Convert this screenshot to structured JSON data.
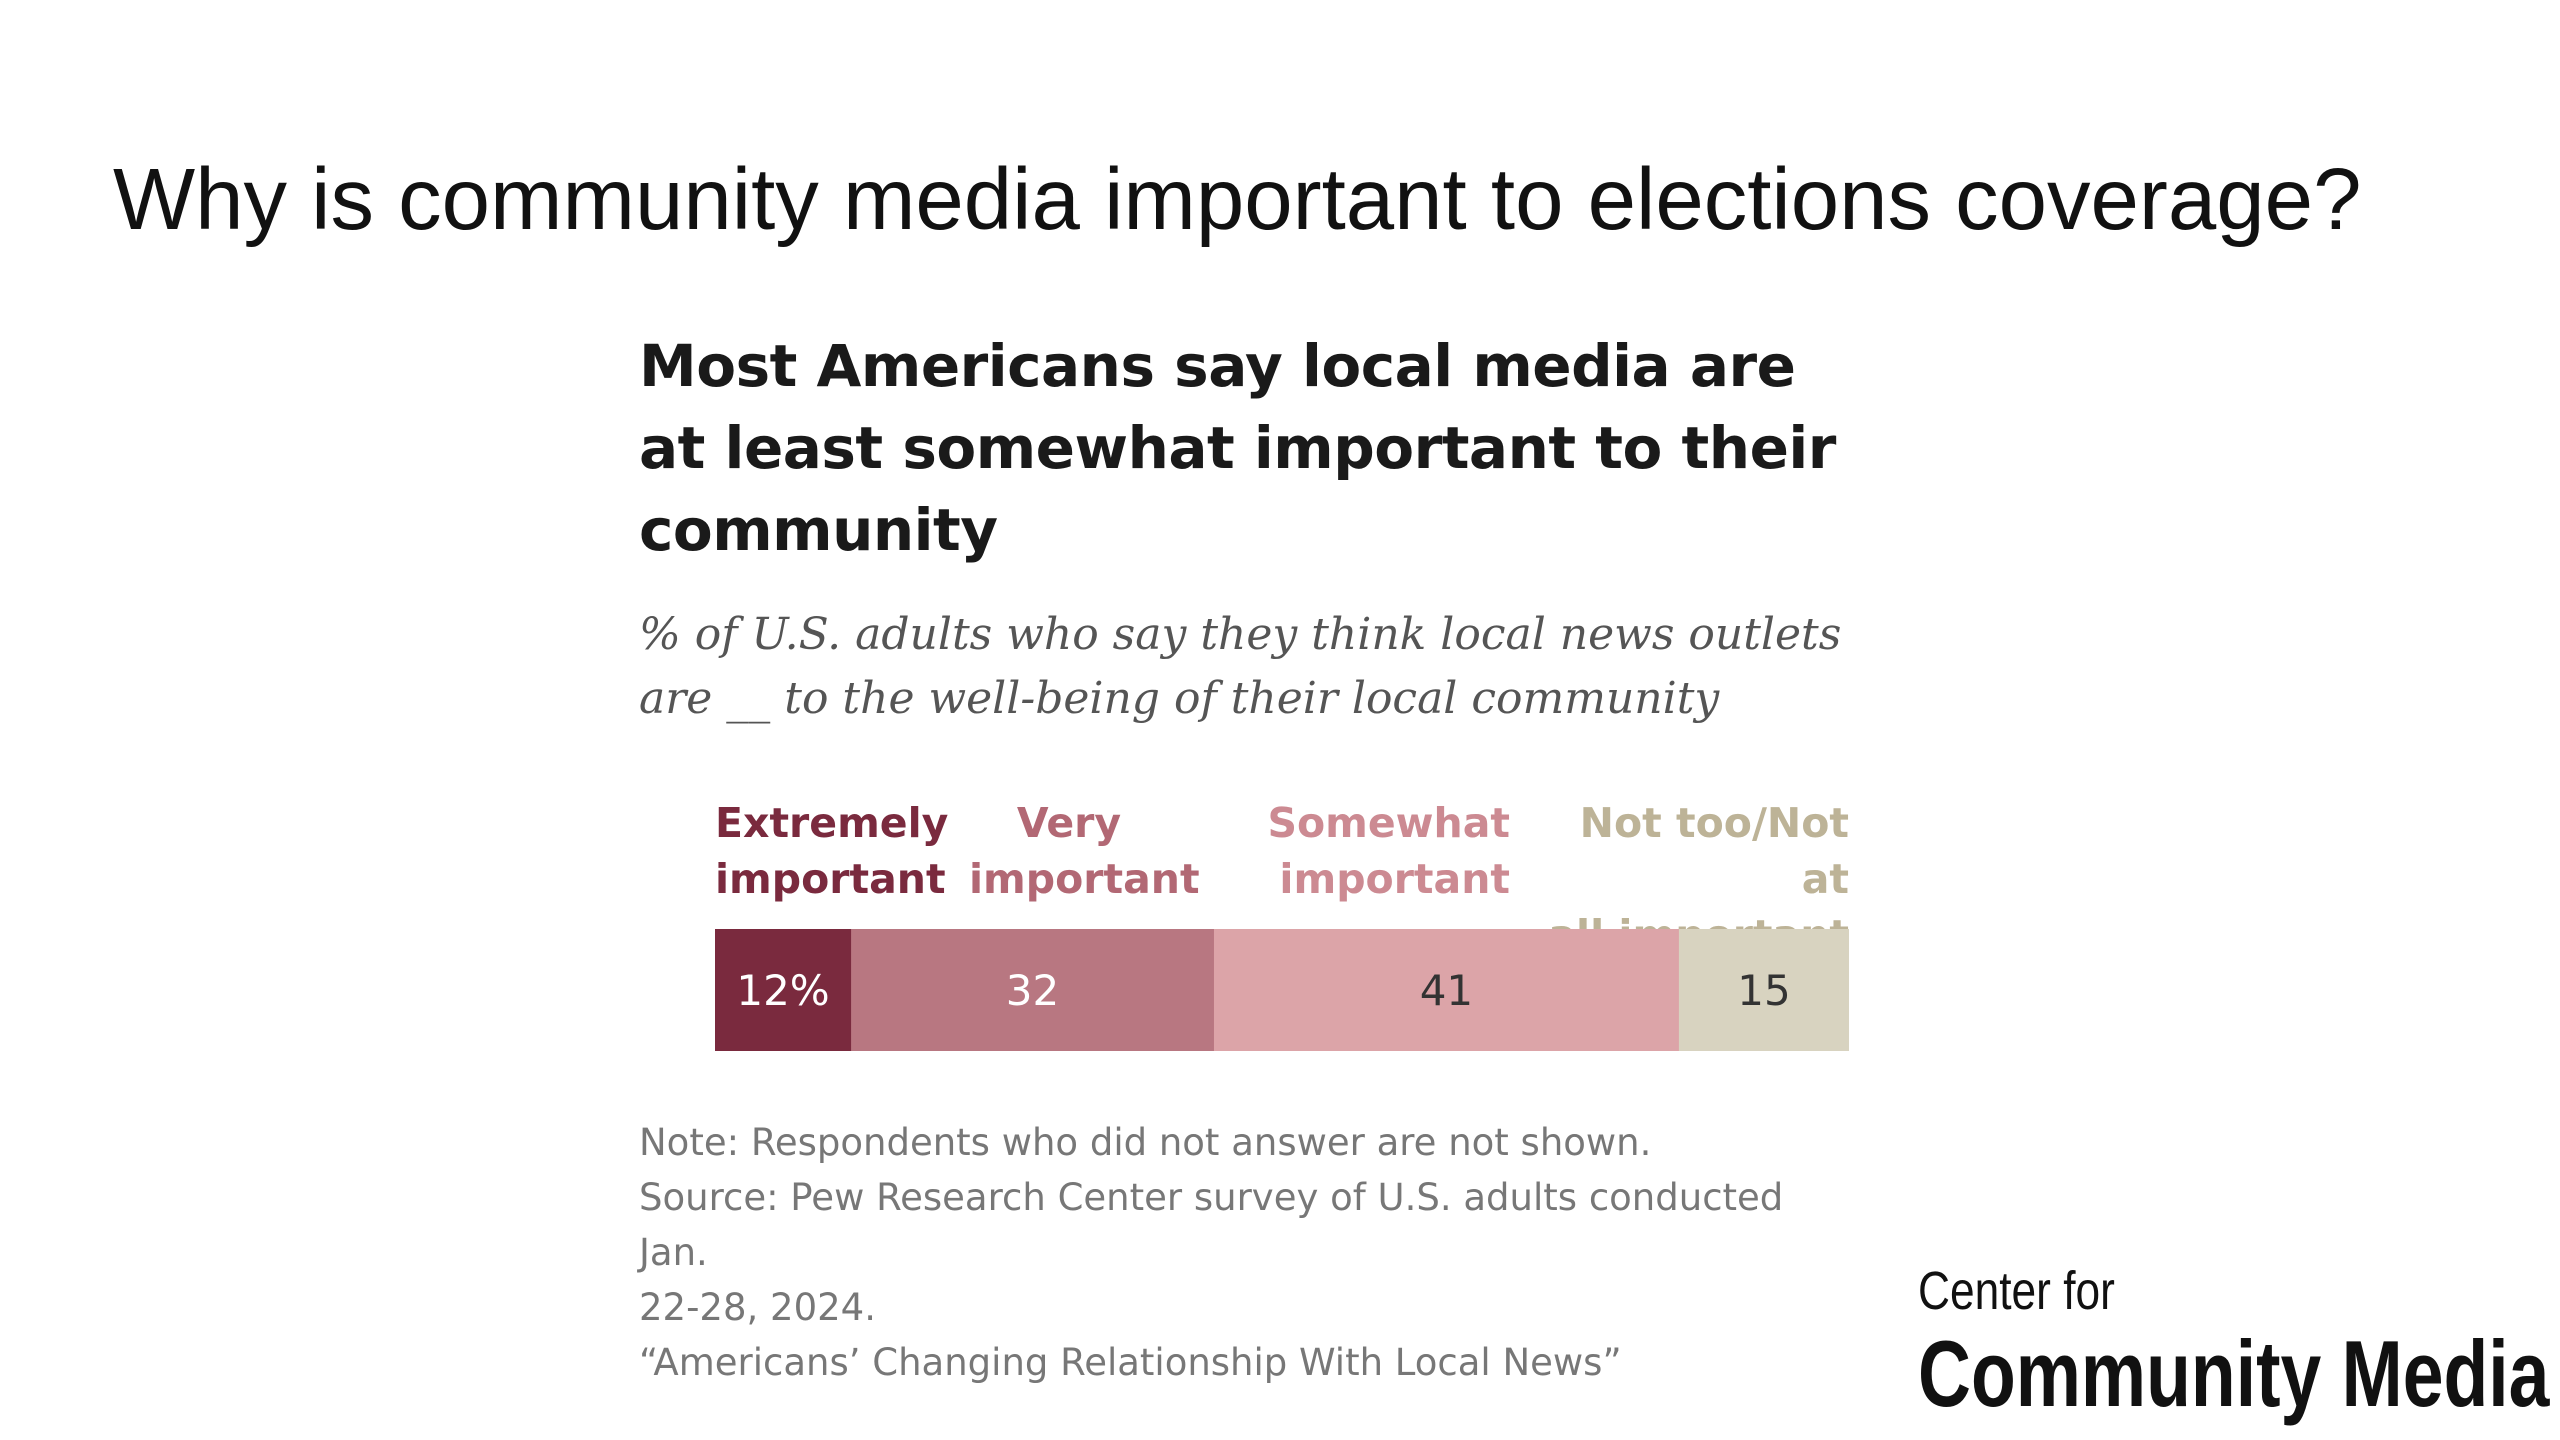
{
  "slide": {
    "title": "Why is community media important to elections coverage?"
  },
  "chart_data": {
    "type": "bar",
    "orientation": "horizontal-stacked",
    "title": "Most Americans say local media are at least somewhat important to their community",
    "subtitle": "% of U.S. adults who say they think local news outlets are __ to the well-being of their local community",
    "categories": [
      "Extremely important",
      "Very important",
      "Somewhat important",
      "Not too/Not at all important"
    ],
    "legend_labels": [
      "Extremely\nimportant",
      "Very\nimportant",
      "Somewhat\nimportant",
      "Not too/Not at\nall important"
    ],
    "values": [
      12,
      32,
      41,
      15
    ],
    "value_labels": [
      "12%",
      "32",
      "41",
      "15"
    ],
    "colors": [
      "#7a2a3e",
      "#b87781",
      "#dca4a8",
      "#d8d3c0"
    ],
    "legend_colors": [
      "#7a2a3e",
      "#b26874",
      "#cc8a92",
      "#bdb397"
    ],
    "label_colors": [
      "#ffffff",
      "#ffffff",
      "#333333",
      "#333333"
    ],
    "xlim": [
      0,
      100
    ],
    "legend_placement": "top",
    "grid": false
  },
  "notes": {
    "note": "Note: Respondents who did not answer are not shown.",
    "source_line1": "Source: Pew Research Center survey of U.S. adults conducted Jan.",
    "source_line2": "22-28, 2024.",
    "report": "“Americans’ Changing Relationship With Local News”"
  },
  "logo": {
    "line1": "Center for",
    "line2": "Community Media"
  }
}
